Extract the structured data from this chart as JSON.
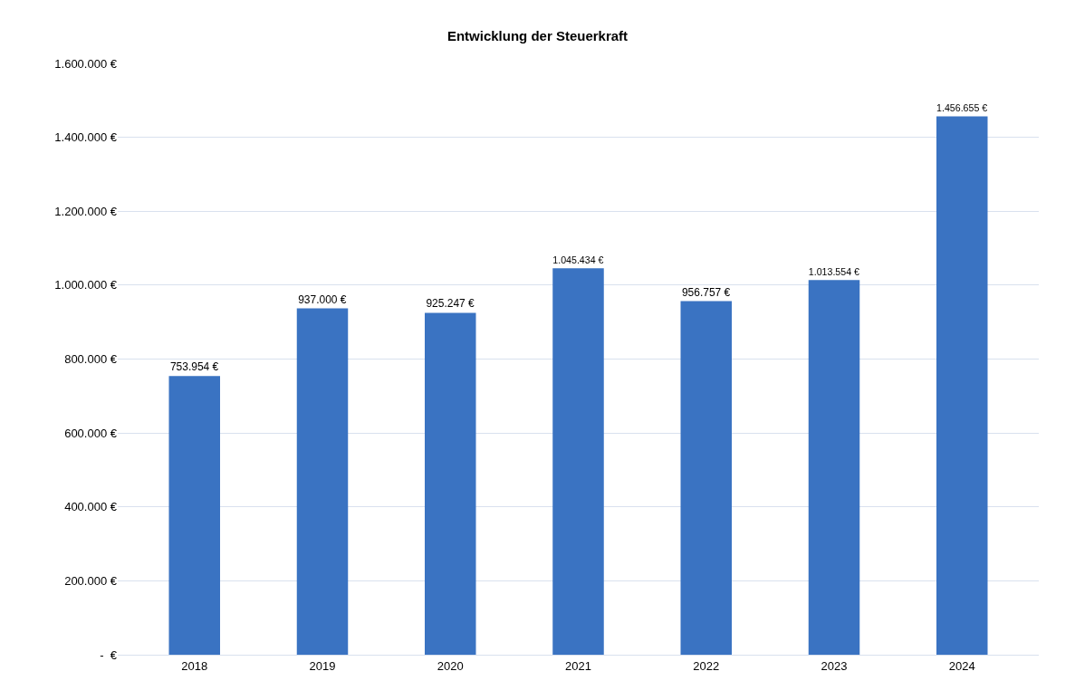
{
  "chart_data": {
    "type": "bar",
    "title": "Entwicklung der Steuerkraft",
    "categories": [
      "2018",
      "2019",
      "2020",
      "2021",
      "2022",
      "2023",
      "2024"
    ],
    "values": [
      753954,
      937000,
      925247,
      1045434,
      956757,
      1013554,
      1456655
    ],
    "value_labels": [
      "753.954 €",
      "937.000 €",
      "925.247 €",
      "1.045.434 €",
      "956.757 €",
      "1.013.554 €",
      "1.456.655 €"
    ],
    "color": "#3a73c2",
    "ylim": [
      0,
      1600000
    ],
    "yticks": [
      {
        "value": 0,
        "label": "-  €"
      },
      {
        "value": 200000,
        "label": "200.000 €"
      },
      {
        "value": 400000,
        "label": "400.000 €"
      },
      {
        "value": 600000,
        "label": "600.000 €"
      },
      {
        "value": 800000,
        "label": "800.000 €"
      },
      {
        "value": 1000000,
        "label": "1.000.000 €"
      },
      {
        "value": 1200000,
        "label": "1.200.000 €"
      },
      {
        "value": 1400000,
        "label": "1.400.000 €"
      },
      {
        "value": 1600000,
        "label": "1.600.000 €"
      }
    ],
    "grid": "y"
  }
}
